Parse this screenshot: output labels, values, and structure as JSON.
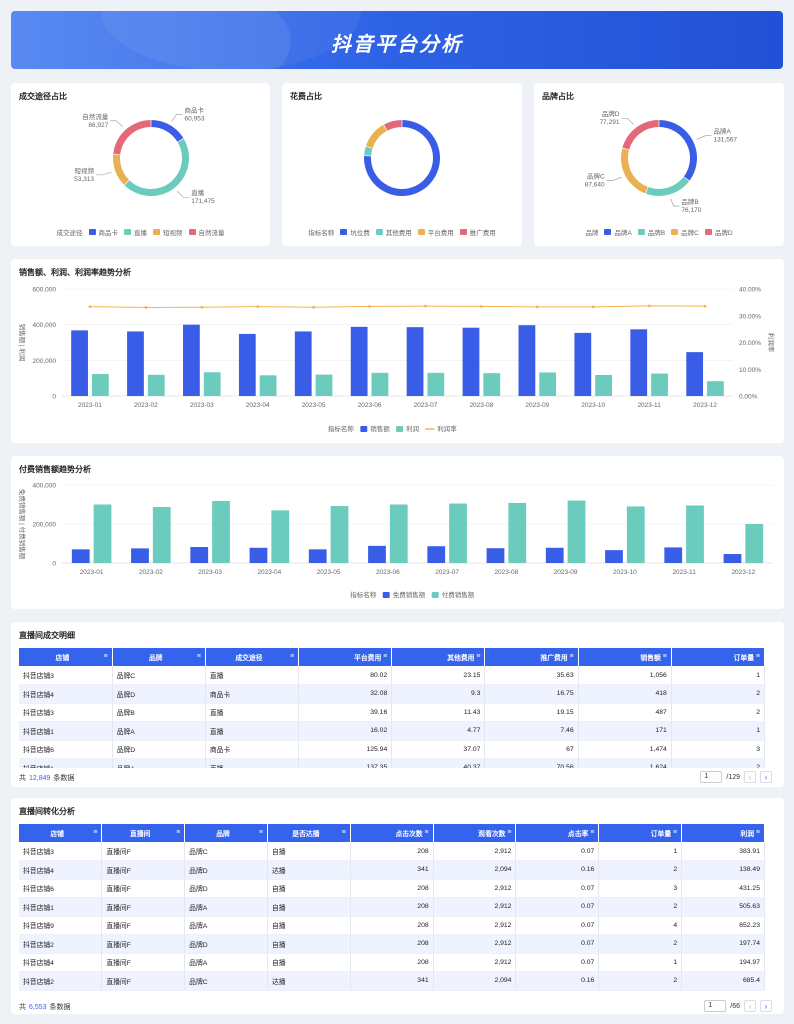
{
  "header": {
    "title": "抖音平台分析"
  },
  "colors": {
    "blue": "#3a5de8",
    "teal": "#6bcbbd",
    "orange": "#eab054",
    "red": "#e2687a",
    "line": "#f5b54f"
  },
  "donuts": [
    {
      "title": "成交途径占比",
      "legend_title": "成交途径",
      "slices": [
        {
          "name": "商品卡",
          "value": 60953,
          "value_label": "60,953",
          "color": "#3a5de8"
        },
        {
          "name": "直播",
          "value": 171475,
          "value_label": "171,475",
          "color": "#6bcbbd"
        },
        {
          "name": "短视频",
          "value": 53313,
          "value_label": "53,313",
          "color": "#eab054"
        },
        {
          "name": "自然流量",
          "value": 86927,
          "value_label": "86,927",
          "color": "#e2687a"
        }
      ]
    },
    {
      "title": "花费占比",
      "legend_title": "指标名称",
      "slices": [
        {
          "name": "坑位费",
          "value": 76,
          "value_label": "",
          "color": "#3a5de8"
        },
        {
          "name": "其他费用",
          "value": 4,
          "value_label": "",
          "color": "#6bcbbd"
        },
        {
          "name": "平台费用",
          "value": 12,
          "value_label": "",
          "color": "#eab054"
        },
        {
          "name": "推广费用",
          "value": 8,
          "value_label": "",
          "color": "#e2687a"
        }
      ]
    },
    {
      "title": "品牌占比",
      "legend_title": "品牌",
      "slices": [
        {
          "name": "品牌A",
          "value": 131567,
          "value_label": "131,567",
          "color": "#3a5de8"
        },
        {
          "name": "品牌B",
          "value": 76170,
          "value_label": "76,170",
          "color": "#6bcbbd"
        },
        {
          "name": "品牌C",
          "value": 87640,
          "value_label": "87,640",
          "color": "#eab054"
        },
        {
          "name": "品牌D",
          "value": 77291,
          "value_label": "77,291",
          "color": "#e2687a"
        }
      ]
    }
  ],
  "chart_data": [
    {
      "type": "donut",
      "title": "成交途径占比",
      "categories": [
        "商品卡",
        "直播",
        "短视频",
        "自然流量"
      ],
      "values": [
        60953,
        171475,
        53313,
        86927
      ]
    },
    {
      "type": "donut",
      "title": "花费占比",
      "categories": [
        "坑位费",
        "其他费用",
        "平台费用",
        "推广费用"
      ],
      "values": [
        76,
        4,
        12,
        8
      ]
    },
    {
      "type": "donut",
      "title": "品牌占比",
      "categories": [
        "品牌A",
        "品牌B",
        "品牌C",
        "品牌D"
      ],
      "values": [
        131567,
        76170,
        87640,
        77291
      ]
    },
    {
      "type": "bar",
      "title": "销售额、利润、利润率趋势分析",
      "ylabel": "销售额 | 利润",
      "y2label": "利润率",
      "legend_title": "指标名称",
      "categories": [
        "2023-01",
        "2023-02",
        "2023-03",
        "2023-04",
        "2023-05",
        "2023-06",
        "2023-07",
        "2023-08",
        "2023-09",
        "2023-10",
        "2023-11",
        "2023-12"
      ],
      "ylim": [
        0,
        600000
      ],
      "yticks": [
        "600,000",
        "400,000",
        "200,000",
        "0"
      ],
      "y2lim": [
        0,
        0.4
      ],
      "y2ticks": [
        "40.00%",
        "30.00%",
        "20.00%",
        "10.00%",
        "0.00%"
      ],
      "series": [
        {
          "name": "销售额",
          "kind": "bar",
          "color": "#3a5de8",
          "values": [
            368000,
            362000,
            400000,
            348000,
            362000,
            388000,
            386000,
            383000,
            397000,
            354000,
            374000,
            246000
          ]
        },
        {
          "name": "利润",
          "kind": "bar",
          "color": "#6bcbbd",
          "values": [
            123000,
            119000,
            133000,
            116000,
            120000,
            130000,
            130000,
            128000,
            132000,
            118000,
            126000,
            83000
          ]
        },
        {
          "name": "利润率",
          "kind": "line",
          "color": "#f5b54f",
          "values": [
            0.334,
            0.331,
            0.332,
            0.334,
            0.332,
            0.335,
            0.336,
            0.335,
            0.333,
            0.333,
            0.337,
            0.336
          ]
        }
      ]
    },
    {
      "type": "bar",
      "title": "付费销售额趋势分析",
      "ylabel": "免费销售额 | 付费销售额",
      "legend_title": "指标名称",
      "categories": [
        "2023-01",
        "2023-02",
        "2023-03",
        "2023-04",
        "2023-05",
        "2023-06",
        "2023-07",
        "2023-08",
        "2023-09",
        "2023-10",
        "2023-11",
        "2023-12"
      ],
      "ylim": [
        0,
        400000
      ],
      "yticks": [
        "400,000",
        "200,000",
        "0"
      ],
      "series": [
        {
          "name": "免费销售额",
          "kind": "bar",
          "color": "#3a5de8",
          "values": [
            70000,
            75000,
            82000,
            78000,
            70000,
            88000,
            86000,
            76000,
            78000,
            66000,
            80000,
            46000
          ]
        },
        {
          "name": "付费销售额",
          "kind": "bar",
          "color": "#6bcbbd",
          "values": [
            300000,
            287000,
            318000,
            270000,
            292000,
            300000,
            305000,
            308000,
            320000,
            290000,
            295000,
            200000
          ]
        }
      ]
    }
  ],
  "table1": {
    "title": "直播间成交明细",
    "columns": [
      "店铺",
      "品牌",
      "成交途径",
      "平台费用",
      "其他费用",
      "推广费用",
      "销售额",
      "订单量"
    ],
    "numeric": [
      false,
      false,
      false,
      true,
      true,
      true,
      true,
      true
    ],
    "rows": [
      [
        "抖音店铺3",
        "品牌C",
        "直播",
        "80.02",
        "23.15",
        "35.63",
        "1,056",
        "1"
      ],
      [
        "抖音店铺4",
        "品牌D",
        "商品卡",
        "32.08",
        "9.3",
        "16.75",
        "418",
        "2"
      ],
      [
        "抖音店铺3",
        "品牌B",
        "直播",
        "39.16",
        "11.43",
        "19.15",
        "487",
        "2"
      ],
      [
        "抖音店铺1",
        "品牌A",
        "直播",
        "16.02",
        "4.77",
        "7.46",
        "171",
        "1"
      ],
      [
        "抖音店铺6",
        "品牌D",
        "商品卡",
        "125.94",
        "37.07",
        "67",
        "1,474",
        "3"
      ],
      [
        "抖音店铺1",
        "品牌A",
        "直播",
        "137.35",
        "40.37",
        "70.56",
        "1,624",
        "2"
      ]
    ],
    "total_prefix": "共",
    "total_count": "12,849",
    "total_suffix": "条数据",
    "page_input": "1",
    "page_total": "/129"
  },
  "table2": {
    "title": "直播间转化分析",
    "columns": [
      "店铺",
      "直播间",
      "品牌",
      "是否达播",
      "点击次数",
      "观看次数",
      "点击率",
      "订单量",
      "利润"
    ],
    "numeric": [
      false,
      false,
      false,
      false,
      true,
      true,
      true,
      true,
      true
    ],
    "rows": [
      [
        "抖音店铺3",
        "直播间F",
        "品牌C",
        "自播",
        "208",
        "2,912",
        "0.07",
        "1",
        "383.91"
      ],
      [
        "抖音店铺4",
        "直播间F",
        "品牌D",
        "达播",
        "341",
        "2,094",
        "0.16",
        "2",
        "138.49"
      ],
      [
        "抖音店铺6",
        "直播间F",
        "品牌D",
        "自播",
        "208",
        "2,912",
        "0.07",
        "3",
        "431.25"
      ],
      [
        "抖音店铺1",
        "直播间F",
        "品牌A",
        "自播",
        "208",
        "2,912",
        "0.07",
        "2",
        "505.63"
      ],
      [
        "抖音店铺9",
        "直播间F",
        "品牌A",
        "自播",
        "208",
        "2,912",
        "0.07",
        "4",
        "652.23"
      ],
      [
        "抖音店铺2",
        "直播间F",
        "品牌D",
        "自播",
        "208",
        "2,912",
        "0.07",
        "2",
        "197.74"
      ],
      [
        "抖音店铺4",
        "直播间F",
        "品牌A",
        "自播",
        "208",
        "2,912",
        "0.07",
        "1",
        "194.97"
      ],
      [
        "抖音店铺2",
        "直播间F",
        "品牌C",
        "达播",
        "341",
        "2,094",
        "0.16",
        "2",
        "685.4"
      ]
    ],
    "total_prefix": "共",
    "total_count": "6,553",
    "total_suffix": "条数据",
    "page_input": "1",
    "page_total": "/66"
  }
}
